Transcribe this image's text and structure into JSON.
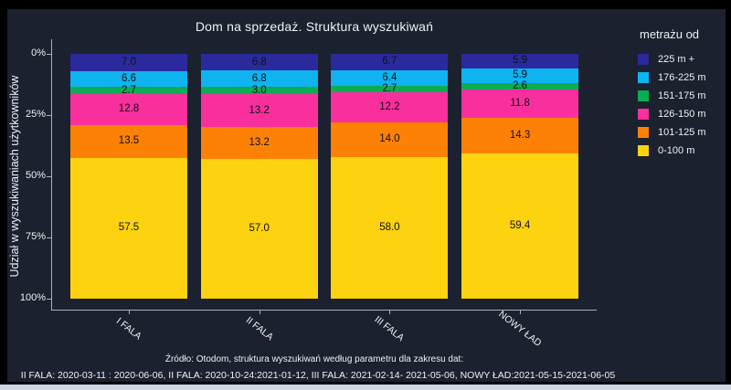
{
  "chart": {
    "background_color": "#1b212e",
    "frame_color": "#000000",
    "bottom_strip_color": "#ccd7e2",
    "axis_color": "#aab2ba",
    "text_color": "#edf1f6",
    "bar_label_color": "#101010"
  },
  "chart_data": {
    "type": "bar",
    "variant": "stacked-percent-vertical",
    "title": "Dom na sprzedaż. Struktura wyszukiwań",
    "ylabel": "Udział w wyszukiwaniach użytkowników",
    "xlabel": "",
    "y_axis_inverted": true,
    "ylim": [
      0,
      100
    ],
    "ytick_vals": [
      0,
      25,
      50,
      75,
      100
    ],
    "ytick_labels": [
      "0%",
      "25%",
      "50%",
      "75%",
      "100%"
    ],
    "categories": [
      "I FALA",
      "II FALA",
      "III FALA",
      "NOWY ŁAD"
    ],
    "legend_title": "metrażu od",
    "legend_position": "right",
    "grid": false,
    "value_label_decimals": 1,
    "series": [
      {
        "name": "225 m +",
        "color": "#2a2a9d",
        "values": [
          7.0,
          6.8,
          6.7,
          5.9
        ]
      },
      {
        "name": "176-225 m",
        "color": "#0fb3f0",
        "values": [
          6.6,
          6.8,
          6.4,
          5.9
        ]
      },
      {
        "name": "151-175 m",
        "color": "#0cad52",
        "values": [
          2.7,
          3.0,
          2.7,
          2.6
        ]
      },
      {
        "name": "126-150 m",
        "color": "#fa2f9e",
        "values": [
          12.8,
          13.2,
          12.2,
          11.8
        ]
      },
      {
        "name": "101-125 m",
        "color": "#fc8105",
        "values": [
          13.5,
          13.2,
          14.0,
          14.3
        ]
      },
      {
        "name": "0-100 m",
        "color": "#fdd20e",
        "values": [
          57.5,
          57.0,
          58.0,
          59.4
        ]
      }
    ]
  },
  "footer": {
    "line1": "Źródło: Otodom, struktura wyszukiwań według parametru dla zakresu dat:",
    "line2": "II FALA: 2020-03-11 : 2020-06-06, II FALA: 2020-10-24:2021-01-12, III FALA: 2021-02-14- 2021-05-06, NOWY ŁAD:2021-05-15-2021-06-05"
  }
}
